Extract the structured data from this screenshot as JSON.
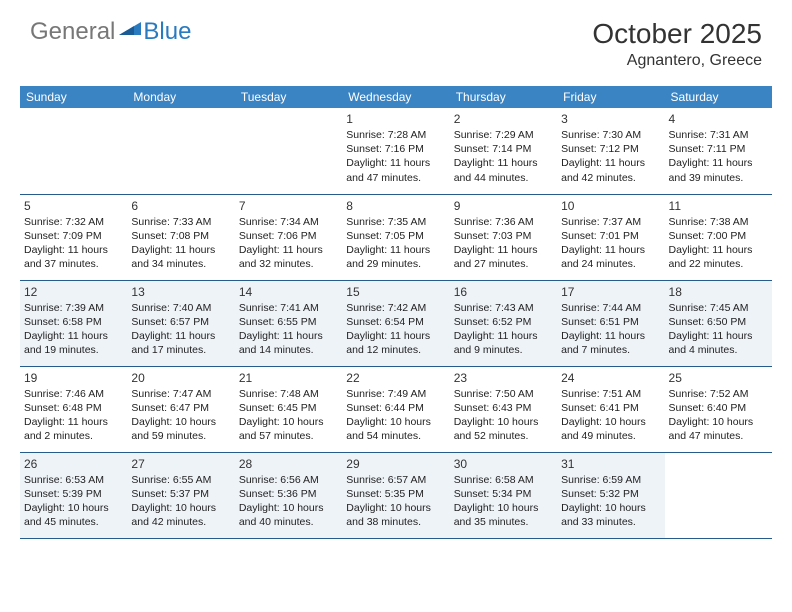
{
  "header": {
    "logo": {
      "general": "General",
      "blue": "Blue"
    },
    "title": "October 2025",
    "location": "Agnantero, Greece"
  },
  "colors": {
    "header_bg": "#3b84c4",
    "border": "#255c8c",
    "shaded_row": "#eef3f8",
    "logo_blue": "#2a7ac0",
    "logo_gray": "#777777"
  },
  "weekdays": [
    "Sunday",
    "Monday",
    "Tuesday",
    "Wednesday",
    "Thursday",
    "Friday",
    "Saturday"
  ],
  "weeks": [
    {
      "shaded": false,
      "days": [
        null,
        null,
        null,
        {
          "n": "1",
          "sunrise": "Sunrise: 7:28 AM",
          "sunset": "Sunset: 7:16 PM",
          "day1": "Daylight: 11 hours",
          "day2": "and 47 minutes."
        },
        {
          "n": "2",
          "sunrise": "Sunrise: 7:29 AM",
          "sunset": "Sunset: 7:14 PM",
          "day1": "Daylight: 11 hours",
          "day2": "and 44 minutes."
        },
        {
          "n": "3",
          "sunrise": "Sunrise: 7:30 AM",
          "sunset": "Sunset: 7:12 PM",
          "day1": "Daylight: 11 hours",
          "day2": "and 42 minutes."
        },
        {
          "n": "4",
          "sunrise": "Sunrise: 7:31 AM",
          "sunset": "Sunset: 7:11 PM",
          "day1": "Daylight: 11 hours",
          "day2": "and 39 minutes."
        }
      ]
    },
    {
      "shaded": false,
      "days": [
        {
          "n": "5",
          "sunrise": "Sunrise: 7:32 AM",
          "sunset": "Sunset: 7:09 PM",
          "day1": "Daylight: 11 hours",
          "day2": "and 37 minutes."
        },
        {
          "n": "6",
          "sunrise": "Sunrise: 7:33 AM",
          "sunset": "Sunset: 7:08 PM",
          "day1": "Daylight: 11 hours",
          "day2": "and 34 minutes."
        },
        {
          "n": "7",
          "sunrise": "Sunrise: 7:34 AM",
          "sunset": "Sunset: 7:06 PM",
          "day1": "Daylight: 11 hours",
          "day2": "and 32 minutes."
        },
        {
          "n": "8",
          "sunrise": "Sunrise: 7:35 AM",
          "sunset": "Sunset: 7:05 PM",
          "day1": "Daylight: 11 hours",
          "day2": "and 29 minutes."
        },
        {
          "n": "9",
          "sunrise": "Sunrise: 7:36 AM",
          "sunset": "Sunset: 7:03 PM",
          "day1": "Daylight: 11 hours",
          "day2": "and 27 minutes."
        },
        {
          "n": "10",
          "sunrise": "Sunrise: 7:37 AM",
          "sunset": "Sunset: 7:01 PM",
          "day1": "Daylight: 11 hours",
          "day2": "and 24 minutes."
        },
        {
          "n": "11",
          "sunrise": "Sunrise: 7:38 AM",
          "sunset": "Sunset: 7:00 PM",
          "day1": "Daylight: 11 hours",
          "day2": "and 22 minutes."
        }
      ]
    },
    {
      "shaded": true,
      "days": [
        {
          "n": "12",
          "sunrise": "Sunrise: 7:39 AM",
          "sunset": "Sunset: 6:58 PM",
          "day1": "Daylight: 11 hours",
          "day2": "and 19 minutes."
        },
        {
          "n": "13",
          "sunrise": "Sunrise: 7:40 AM",
          "sunset": "Sunset: 6:57 PM",
          "day1": "Daylight: 11 hours",
          "day2": "and 17 minutes."
        },
        {
          "n": "14",
          "sunrise": "Sunrise: 7:41 AM",
          "sunset": "Sunset: 6:55 PM",
          "day1": "Daylight: 11 hours",
          "day2": "and 14 minutes."
        },
        {
          "n": "15",
          "sunrise": "Sunrise: 7:42 AM",
          "sunset": "Sunset: 6:54 PM",
          "day1": "Daylight: 11 hours",
          "day2": "and 12 minutes."
        },
        {
          "n": "16",
          "sunrise": "Sunrise: 7:43 AM",
          "sunset": "Sunset: 6:52 PM",
          "day1": "Daylight: 11 hours",
          "day2": "and 9 minutes."
        },
        {
          "n": "17",
          "sunrise": "Sunrise: 7:44 AM",
          "sunset": "Sunset: 6:51 PM",
          "day1": "Daylight: 11 hours",
          "day2": "and 7 minutes."
        },
        {
          "n": "18",
          "sunrise": "Sunrise: 7:45 AM",
          "sunset": "Sunset: 6:50 PM",
          "day1": "Daylight: 11 hours",
          "day2": "and 4 minutes."
        }
      ]
    },
    {
      "shaded": false,
      "days": [
        {
          "n": "19",
          "sunrise": "Sunrise: 7:46 AM",
          "sunset": "Sunset: 6:48 PM",
          "day1": "Daylight: 11 hours",
          "day2": "and 2 minutes."
        },
        {
          "n": "20",
          "sunrise": "Sunrise: 7:47 AM",
          "sunset": "Sunset: 6:47 PM",
          "day1": "Daylight: 10 hours",
          "day2": "and 59 minutes."
        },
        {
          "n": "21",
          "sunrise": "Sunrise: 7:48 AM",
          "sunset": "Sunset: 6:45 PM",
          "day1": "Daylight: 10 hours",
          "day2": "and 57 minutes."
        },
        {
          "n": "22",
          "sunrise": "Sunrise: 7:49 AM",
          "sunset": "Sunset: 6:44 PM",
          "day1": "Daylight: 10 hours",
          "day2": "and 54 minutes."
        },
        {
          "n": "23",
          "sunrise": "Sunrise: 7:50 AM",
          "sunset": "Sunset: 6:43 PM",
          "day1": "Daylight: 10 hours",
          "day2": "and 52 minutes."
        },
        {
          "n": "24",
          "sunrise": "Sunrise: 7:51 AM",
          "sunset": "Sunset: 6:41 PM",
          "day1": "Daylight: 10 hours",
          "day2": "and 49 minutes."
        },
        {
          "n": "25",
          "sunrise": "Sunrise: 7:52 AM",
          "sunset": "Sunset: 6:40 PM",
          "day1": "Daylight: 10 hours",
          "day2": "and 47 minutes."
        }
      ]
    },
    {
      "shaded": true,
      "days": [
        {
          "n": "26",
          "sunrise": "Sunrise: 6:53 AM",
          "sunset": "Sunset: 5:39 PM",
          "day1": "Daylight: 10 hours",
          "day2": "and 45 minutes."
        },
        {
          "n": "27",
          "sunrise": "Sunrise: 6:55 AM",
          "sunset": "Sunset: 5:37 PM",
          "day1": "Daylight: 10 hours",
          "day2": "and 42 minutes."
        },
        {
          "n": "28",
          "sunrise": "Sunrise: 6:56 AM",
          "sunset": "Sunset: 5:36 PM",
          "day1": "Daylight: 10 hours",
          "day2": "and 40 minutes."
        },
        {
          "n": "29",
          "sunrise": "Sunrise: 6:57 AM",
          "sunset": "Sunset: 5:35 PM",
          "day1": "Daylight: 10 hours",
          "day2": "and 38 minutes."
        },
        {
          "n": "30",
          "sunrise": "Sunrise: 6:58 AM",
          "sunset": "Sunset: 5:34 PM",
          "day1": "Daylight: 10 hours",
          "day2": "and 35 minutes."
        },
        {
          "n": "31",
          "sunrise": "Sunrise: 6:59 AM",
          "sunset": "Sunset: 5:32 PM",
          "day1": "Daylight: 10 hours",
          "day2": "and 33 minutes."
        },
        null
      ]
    }
  ]
}
